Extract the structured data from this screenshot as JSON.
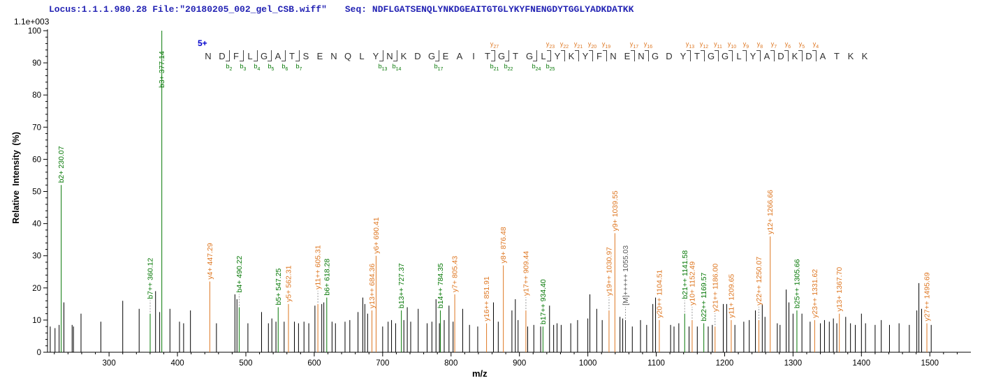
{
  "header": {
    "locus_file": "Locus:1.1.1.980.28 File:\"20180205_002_gel_CSB.wiff\"",
    "seq_label": "Seq:",
    "sequence": "NDFLGATSENQLYNKDGEAITGTGLYKYFNENGDYTGGLYADKDATKK",
    "text_color": "#2424b4"
  },
  "annotation": {
    "charge_label": "5+",
    "charge_color": "#0000cc",
    "sequence": "NDFLGATSENQLYNKDGEAITGTGLYKYFNENGDYTGGLYADKDATKK",
    "b_markers": [
      2,
      3,
      4,
      5,
      6,
      7,
      13,
      14,
      17,
      21,
      22,
      24,
      25
    ],
    "y_markers": [
      27,
      23,
      22,
      21,
      20,
      19,
      17,
      16,
      13,
      12,
      11,
      10,
      9,
      8,
      7,
      6,
      5,
      4
    ]
  },
  "chart_data": {
    "type": "bar",
    "title": "MS/MS fragmentation spectrum",
    "xlabel": "m/z",
    "ylabel": "Relative Intensity (%)",
    "max_intensity_text": "1.1e+003",
    "xlim": [
      210,
      1560
    ],
    "ylim": [
      0,
      100
    ],
    "x_major_ticks": [
      300,
      400,
      500,
      600,
      700,
      800,
      900,
      1000,
      1100,
      1200,
      1300,
      1400,
      1500
    ],
    "x_minor_step": 20,
    "y_major_ticks": [
      0,
      10,
      20,
      30,
      40,
      50,
      60,
      70,
      80,
      90,
      100
    ],
    "y_minor_step": 2,
    "grid": false,
    "legend": "none",
    "colors": {
      "b_ion": "#067806",
      "y_ion": "#de7722",
      "precursor_label": "#5a5a5a",
      "peak": "#000000"
    },
    "labeled_peaks": [
      {
        "label": "b2+ 230.07",
        "mz": 230.07,
        "intensity": 52,
        "ion": "b"
      },
      {
        "label": "b7++ 360.12",
        "mz": 360.12,
        "intensity": 12,
        "ion": "b",
        "leader": true
      },
      {
        "label": "b3+ 377.14",
        "mz": 377.14,
        "intensity": 100,
        "ion": "b"
      },
      {
        "label": "y4+ 447.29",
        "mz": 447.29,
        "intensity": 22,
        "ion": "y"
      },
      {
        "label": "b4+ 490.22",
        "mz": 490.22,
        "intensity": 14,
        "ion": "b",
        "leader": true
      },
      {
        "label": "b5+ 547.25",
        "mz": 547.25,
        "intensity": 14,
        "ion": "b"
      },
      {
        "label": "y5+ 562.31",
        "mz": 562.31,
        "intensity": 15,
        "ion": "y"
      },
      {
        "label": "y11++ 605.31",
        "mz": 605.31,
        "intensity": 15,
        "ion": "y",
        "leader": true
      },
      {
        "label": "b6+ 618.28",
        "mz": 618.28,
        "intensity": 17,
        "ion": "b"
      },
      {
        "label": "y13++ 684.36",
        "mz": 684.36,
        "intensity": 13,
        "ion": "y"
      },
      {
        "label": "y6+ 690.41",
        "mz": 690.41,
        "intensity": 30,
        "ion": "y"
      },
      {
        "label": "b13++ 727.37",
        "mz": 727.37,
        "intensity": 13,
        "ion": "b"
      },
      {
        "label": "b14++ 784.35",
        "mz": 784.35,
        "intensity": 13,
        "ion": "b"
      },
      {
        "label": "y7+ 805.43",
        "mz": 805.43,
        "intensity": 18,
        "ion": "y"
      },
      {
        "label": "y16++ 851.91",
        "mz": 851.91,
        "intensity": 9,
        "ion": "y"
      },
      {
        "label": "y8+ 876.48",
        "mz": 876.48,
        "intensity": 27,
        "ion": "y"
      },
      {
        "label": "y17++ 909.44",
        "mz": 909.44,
        "intensity": 13,
        "ion": "y",
        "leader": true
      },
      {
        "label": "b17++ 934.40",
        "mz": 934.4,
        "intensity": 8,
        "ion": "b"
      },
      {
        "label": "y19++ 1030.97",
        "mz": 1030.97,
        "intensity": 13,
        "ion": "y",
        "leader": true
      },
      {
        "label": "y9+ 1039.55",
        "mz": 1039.55,
        "intensity": 37,
        "ion": "y"
      },
      {
        "label": "[M]+++++ 1055.03",
        "mz": 1055.03,
        "intensity": 10,
        "ion": "precursor",
        "leader": true
      },
      {
        "label": "y20++ 1104.51",
        "mz": 1104.51,
        "intensity": 10,
        "ion": "y"
      },
      {
        "label": "b21++ 1141.58",
        "mz": 1141.58,
        "intensity": 12,
        "ion": "b",
        "leader": true
      },
      {
        "label": "y10+ 1152.49",
        "mz": 1152.49,
        "intensity": 10,
        "ion": "y",
        "leader": true
      },
      {
        "label": "b22++ 1169.57",
        "mz": 1169.57,
        "intensity": 9,
        "ion": "b"
      },
      {
        "label": "y21++ 1186.00",
        "mz": 1186.0,
        "intensity": 8,
        "ion": "y",
        "leader": true
      },
      {
        "label": "y11+ 1209.65",
        "mz": 1209.65,
        "intensity": 10,
        "ion": "y"
      },
      {
        "label": "y22++ 1250.07",
        "mz": 1250.07,
        "intensity": 10,
        "ion": "y",
        "leader": true
      },
      {
        "label": "y12+ 1266.66",
        "mz": 1266.66,
        "intensity": 36,
        "ion": "y"
      },
      {
        "label": "b25++ 1305.66",
        "mz": 1305.66,
        "intensity": 13,
        "ion": "b"
      },
      {
        "label": "y23++ 1331.62",
        "mz": 1331.62,
        "intensity": 10,
        "ion": "y"
      },
      {
        "label": "y13+ 1367.70",
        "mz": 1367.7,
        "intensity": 12,
        "ion": "y"
      },
      {
        "label": "y27++ 1495.69",
        "mz": 1495.69,
        "intensity": 9,
        "ion": "y"
      }
    ],
    "unlabeled_peaks": [
      [
        214,
        8
      ],
      [
        221,
        7.5
      ],
      [
        227,
        8.5
      ],
      [
        234,
        15.5
      ],
      [
        246,
        8.5
      ],
      [
        248,
        8
      ],
      [
        259,
        12
      ],
      [
        288,
        9.5
      ],
      [
        320,
        16
      ],
      [
        344,
        13.5
      ],
      [
        368,
        19
      ],
      [
        374,
        12.5
      ],
      [
        389,
        13.5
      ],
      [
        403,
        9.5
      ],
      [
        409,
        9
      ],
      [
        419,
        13
      ],
      [
        457,
        9
      ],
      [
        484,
        18
      ],
      [
        487,
        16.5
      ],
      [
        503,
        9
      ],
      [
        523,
        12.5
      ],
      [
        533,
        9
      ],
      [
        538,
        10.5
      ],
      [
        544,
        9.5
      ],
      [
        556,
        9.5
      ],
      [
        571,
        9.5
      ],
      [
        577,
        9
      ],
      [
        585,
        9.5
      ],
      [
        592,
        9
      ],
      [
        601,
        14.5
      ],
      [
        611,
        15
      ],
      [
        614,
        15.5
      ],
      [
        626,
        9.5
      ],
      [
        631,
        9
      ],
      [
        645,
        9.5
      ],
      [
        652,
        10
      ],
      [
        664,
        12.5
      ],
      [
        671,
        17
      ],
      [
        674,
        15
      ],
      [
        678,
        12
      ],
      [
        700,
        8
      ],
      [
        708,
        9.5
      ],
      [
        713,
        10
      ],
      [
        719,
        9
      ],
      [
        731,
        10
      ],
      [
        736,
        14
      ],
      [
        741,
        9.5
      ],
      [
        752,
        13.5
      ],
      [
        765,
        9
      ],
      [
        772,
        9.5
      ],
      [
        778,
        16.5
      ],
      [
        783,
        9
      ],
      [
        790,
        10
      ],
      [
        797,
        14.5
      ],
      [
        803,
        9.5
      ],
      [
        817,
        13.5
      ],
      [
        827,
        8.5
      ],
      [
        839,
        8
      ],
      [
        862,
        15.5
      ],
      [
        869,
        9.5
      ],
      [
        889,
        13
      ],
      [
        894,
        16.5
      ],
      [
        898,
        10
      ],
      [
        912,
        8
      ],
      [
        921,
        8.5
      ],
      [
        931,
        8
      ],
      [
        944,
        14.5
      ],
      [
        950,
        8.5
      ],
      [
        955,
        9
      ],
      [
        961,
        8.5
      ],
      [
        975,
        9
      ],
      [
        985,
        10
      ],
      [
        1000,
        10.5
      ],
      [
        1003,
        18
      ],
      [
        1013,
        13.5
      ],
      [
        1021,
        10
      ],
      [
        1047,
        11
      ],
      [
        1051,
        10.5
      ],
      [
        1065,
        8
      ],
      [
        1077,
        10
      ],
      [
        1086,
        8.5
      ],
      [
        1095,
        15
      ],
      [
        1099,
        17
      ],
      [
        1121,
        8.5
      ],
      [
        1126,
        8
      ],
      [
        1133,
        9
      ],
      [
        1148,
        8
      ],
      [
        1160,
        8
      ],
      [
        1176,
        8
      ],
      [
        1182,
        8.5
      ],
      [
        1198,
        15
      ],
      [
        1203,
        15
      ],
      [
        1215,
        8.5
      ],
      [
        1228,
        9.5
      ],
      [
        1236,
        10
      ],
      [
        1245,
        13
      ],
      [
        1255,
        15
      ],
      [
        1259,
        11
      ],
      [
        1277,
        9
      ],
      [
        1281,
        8.5
      ],
      [
        1290,
        19.5
      ],
      [
        1294,
        15.5
      ],
      [
        1300,
        12
      ],
      [
        1313,
        12
      ],
      [
        1325,
        9.5
      ],
      [
        1340,
        9
      ],
      [
        1346,
        10
      ],
      [
        1353,
        9.5
      ],
      [
        1359,
        10.5
      ],
      [
        1364,
        9
      ],
      [
        1377,
        11
      ],
      [
        1384,
        9
      ],
      [
        1391,
        8.5
      ],
      [
        1400,
        12
      ],
      [
        1406,
        9
      ],
      [
        1420,
        8.5
      ],
      [
        1429,
        10
      ],
      [
        1441,
        8.5
      ],
      [
        1455,
        9
      ],
      [
        1470,
        8.5
      ],
      [
        1481,
        13
      ],
      [
        1484,
        21.5
      ],
      [
        1488,
        13.5
      ],
      [
        1502,
        8.5
      ]
    ]
  }
}
